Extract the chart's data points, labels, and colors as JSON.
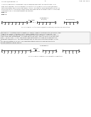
{
  "bg_color": "#ffffff",
  "text_color": "#444444",
  "dark_color": "#111111",
  "header_left": "US 2014/0085685 A1",
  "header_right": "Aug. 28, 2014",
  "page_num": "5",
  "intro_lines": [
    "A block copolymer dispersant consisting of a lipophilic anchoring block and a stabilizing block",
    "was synthesized by RAFT polymerization. The lipophilic block was composed of",
    "dodecyl methacrylate (DMA) and the stabilizing block was composed of",
    "2-(dimethylamino)ethyl methacrylate (DMAEMA).",
    "FIG. 1     Scheme 1.",
    "FIG. 2"
  ],
  "scheme1_label": "Scheme 1",
  "scheme2_label": "Scheme 2",
  "fig1_caption": "FIG. 1 Scheme 1. Synthesis of poly(DMA-b-DMAEMA) via RAFT polymerization.",
  "fig2_caption": "FIG. 2 Scheme 2. Dispersion of pigment nanoparticles.",
  "example_lines": [
    "EXAMPLE 1. A mixture of RAFT agent (0.1 mmol), dodecyl methacrylate (10 mmol) and",
    "AIBN (0.01 mmol) in toluene (5 mL) was heated at 70 C for 24 h under N2. The",
    "macro-CTA obtained was used for chain extension with DMAEMA. The resulting block",
    "copolymer was precipitated in hexane and dried under vacuum to give a white solid.",
    "Mn = 12,000, PDI = 1.18. The block copolymer was then used as a dispersant for",
    "pigment nanoparticles. 100 mg pigment and 20 mg dispersant were mixed in 5 mL",
    "oil and sonicated for 30 min. The resulting stable dispersion was applied to an",
    "electrowetting display device."
  ]
}
